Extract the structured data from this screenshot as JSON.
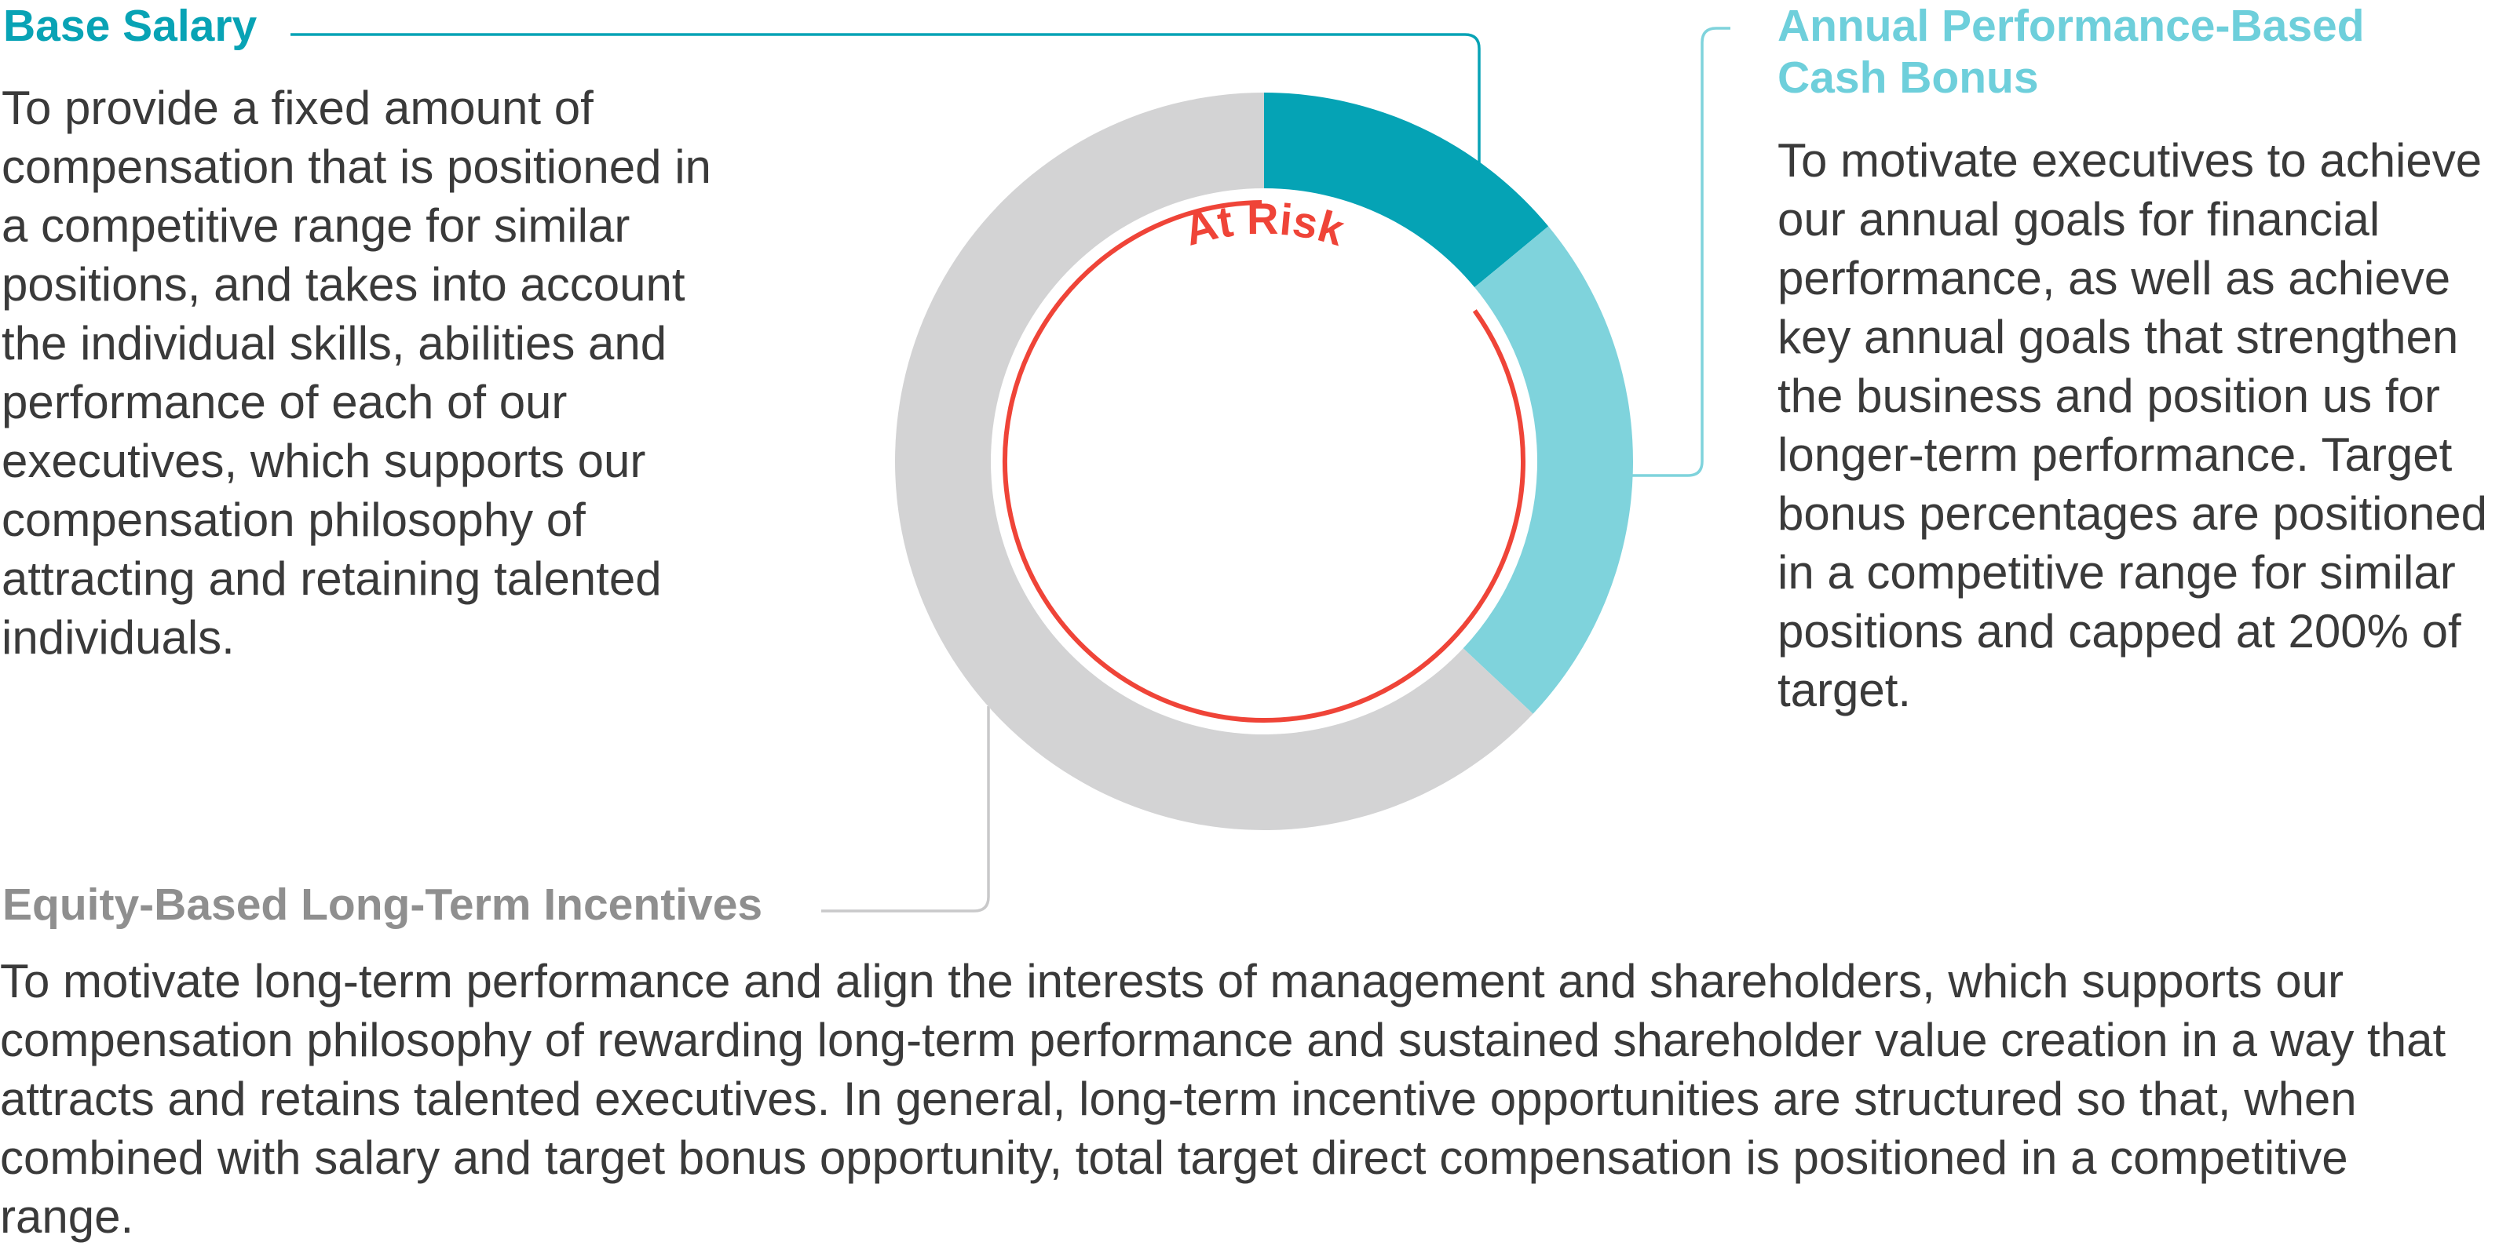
{
  "chart_data": {
    "type": "pie",
    "style": "donut",
    "slices": [
      {
        "label": "Base Salary",
        "value": 14,
        "color": "#05a3b5"
      },
      {
        "label": "Annual Performance-Based Cash Bonus",
        "value": 23,
        "color": "#7fd3dc"
      },
      {
        "label": "Equity-Based Long-Term Incentives",
        "value": 63,
        "color": "#d3d3d4"
      }
    ],
    "at_risk": {
      "label": "At Risk",
      "color": "#ef4438",
      "covers": [
        "Annual Performance-Based Cash Bonus",
        "Equity-Based Long-Term Incentives"
      ]
    },
    "legend": "callouts"
  },
  "sections": {
    "base_salary": {
      "title": "Base Salary",
      "text": "To provide a fixed amount of compensation that is positioned in a competitive range for similar positions, and takes into account the individual skills, abilities and performance of each of our executives, which supports our compensation philosophy of attracting and retaining talented individuals."
    },
    "bonus": {
      "title": "Annual Performance-Based Cash Bonus",
      "text": "To motivate executives to achieve our annual goals for financial performance, as well as achieve key annual goals that strengthen the business and position us for longer-term performance. Target bonus percentages are positioned in a competitive range for similar positions and capped at 200% of target."
    },
    "equity": {
      "title": "Equity-Based Long-Term Incentives",
      "text": "To motivate long-term performance and align the interests of management and shareholders, which supports our compensation philosophy of rewarding long-term performance and sustained shareholder value creation in a way that attracts and retains talented executives. In general, long-term incentive opportunities are structured so that, when combined with salary and target bonus opportunity, total target direct compensation is positioned in a competitive range."
    }
  }
}
